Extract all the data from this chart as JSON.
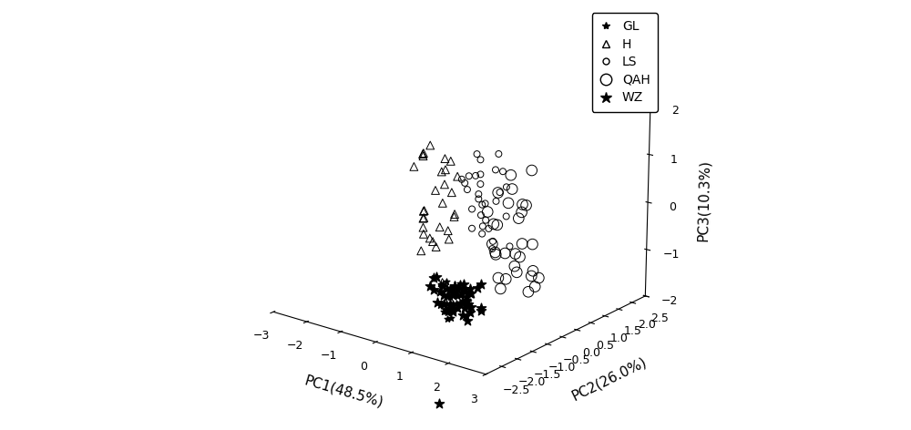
{
  "xlabel": "PC1(48.5%)",
  "ylabel": "PC2(26.0%)",
  "zlabel": "PC3(10.3%)",
  "xlim": [
    -3,
    3
  ],
  "ylim": [
    -3,
    2.5
  ],
  "zlim": [
    -2,
    2
  ],
  "xticks": [
    -3,
    -2,
    -1,
    0,
    1,
    2,
    3
  ],
  "yticks": [
    -2.5,
    -2,
    -1.5,
    -1,
    -0.5,
    0,
    0.5,
    1,
    1.5,
    2,
    2.5
  ],
  "zticks": [
    -2,
    -1,
    0,
    1,
    2
  ],
  "GL": {
    "pc1": [
      -0.3,
      -0.1,
      0.1,
      0.0,
      0.2,
      -0.2,
      0.1,
      -0.1,
      0.0,
      0.3,
      -0.3,
      0.2,
      0.0,
      -0.2,
      0.1,
      -0.1,
      0.3,
      -0.3,
      0.2,
      0.0,
      -0.2,
      0.1,
      -0.1,
      0.3,
      -0.3,
      0.0,
      0.2,
      -0.2,
      0.1,
      0.3,
      -0.1,
      0.0,
      -0.3,
      0.2,
      -0.2,
      0.1
    ],
    "pc2": [
      -0.5,
      -0.3,
      -0.4,
      -0.6,
      -0.5,
      -0.7,
      -0.4,
      -0.6,
      -0.3,
      -0.5,
      -0.4,
      -0.6,
      -0.7,
      -0.5,
      -0.3,
      -0.6,
      -0.4,
      -0.5,
      -0.7,
      -0.4,
      -0.6,
      -0.3,
      -0.5,
      -0.4,
      -0.6,
      -0.5,
      -0.3,
      -0.7,
      -0.4,
      -0.6,
      -0.5,
      -0.3,
      -0.4,
      -0.6,
      -0.5,
      -0.7
    ],
    "pc3": [
      -1.8,
      -2.0,
      -1.6,
      -2.2,
      -1.7,
      -1.9,
      -1.5,
      -2.1,
      -1.8,
      -1.6,
      -2.0,
      -1.7,
      -2.2,
      -1.5,
      -1.9,
      -1.6,
      -1.8,
      -2.0,
      -1.5,
      -1.7,
      -2.1,
      -1.9,
      -1.6,
      -1.8,
      -2.0,
      -1.7,
      -2.2,
      -1.5,
      -1.9,
      -1.6,
      -1.8,
      -2.0,
      -1.7,
      -1.5,
      -2.1,
      -1.9
    ]
  },
  "H": {
    "pc1": [
      -2.2,
      -2.0,
      -1.8,
      -1.6,
      -2.1,
      -1.9,
      -1.7,
      -2.0,
      -1.8,
      -2.2,
      -1.6,
      -2.0,
      -1.9,
      -1.7,
      -2.1,
      -1.8,
      -2.0,
      -1.6,
      -1.9,
      -2.2,
      -1.7,
      -2.0,
      -1.8,
      -2.1,
      -1.6,
      -1.9,
      -2.2,
      -1.7,
      -2.0,
      -1.8
    ],
    "pc2": [
      1.0,
      1.2,
      0.8,
      1.4,
      0.9,
      1.3,
      1.1,
      0.7,
      1.5,
      1.0,
      1.2,
      0.8,
      1.4,
      1.0,
      0.9,
      1.3,
      1.1,
      1.5,
      0.7,
      1.0,
      1.2,
      0.8,
      1.4,
      0.9,
      1.3,
      1.1,
      0.7,
      1.5,
      1.0,
      1.2
    ],
    "pc3": [
      0.5,
      -0.3,
      0.8,
      -0.8,
      -1.2,
      0.1,
      -0.5,
      -1.5,
      0.3,
      -0.9,
      -1.3,
      0.6,
      -0.2,
      -1.0,
      -0.7,
      0.4,
      -1.4,
      0.0,
      -0.6,
      -1.1,
      0.2,
      -0.8,
      -1.2,
      0.5,
      -0.3,
      -1.5,
      0.3,
      -0.9,
      -1.3,
      -2.3
    ]
  },
  "LS": {
    "pc1": [
      0.3,
      0.5,
      0.8,
      1.0,
      0.6,
      1.2,
      0.4,
      0.9,
      1.4,
      0.7,
      1.1,
      0.5,
      0.8,
      1.3,
      0.6,
      1.0,
      0.4,
      0.7,
      1.2,
      0.9,
      0.5,
      0.8,
      1.1,
      0.6,
      1.3,
      0.4,
      0.9,
      0.7,
      1.0,
      0.6
    ],
    "pc2": [
      -0.4,
      -0.2,
      -0.5,
      -0.3,
      -0.6,
      -0.4,
      -0.2,
      -0.5,
      -0.3,
      -0.6,
      -0.4,
      -0.2,
      -0.5,
      -0.3,
      -0.6,
      -0.4,
      -0.7,
      -0.5,
      -0.3,
      -0.6,
      -0.2,
      -0.4,
      -0.5,
      -0.7,
      -0.3,
      -0.6,
      -0.4,
      -0.5,
      -0.2,
      -0.3
    ],
    "pc3": [
      0.5,
      0.8,
      0.3,
      1.0,
      -0.2,
      0.6,
      1.2,
      0.0,
      -0.5,
      0.9,
      0.4,
      1.1,
      -0.3,
      0.7,
      0.2,
      -0.6,
      0.8,
      0.5,
      1.0,
      -0.1,
      0.6,
      0.3,
      -0.4,
      0.9,
      0.1,
      0.7,
      -0.2,
      0.4,
      1.3,
      0.0
    ]
  },
  "QAH": {
    "pc1": [
      1.0,
      1.3,
      1.6,
      2.0,
      2.3,
      1.5,
      1.8,
      2.1,
      1.2,
      1.7,
      2.0,
      1.4,
      1.9,
      2.2,
      1.6,
      1.1,
      1.8,
      2.0,
      1.3,
      1.7,
      2.1,
      1.5,
      1.9,
      1.0,
      1.4,
      1.8,
      2.2,
      1.6,
      2.0,
      1.2
    ],
    "pc2": [
      -0.4,
      -0.6,
      -0.3,
      -0.5,
      -0.7,
      -0.4,
      -0.6,
      -0.3,
      -0.8,
      -0.5,
      -0.4,
      -0.7,
      -0.5,
      -0.3,
      -0.6,
      -0.4,
      -0.5,
      -0.7,
      -0.3,
      -0.6,
      -0.4,
      -0.8,
      -0.5,
      -0.3,
      -0.6,
      -0.4,
      -0.5,
      -0.7,
      -0.3,
      -0.6
    ],
    "pc3": [
      -0.5,
      0.0,
      -1.0,
      0.5,
      1.3,
      1.0,
      -0.5,
      -1.2,
      0.3,
      -0.8,
      -1.3,
      0.7,
      -0.3,
      -1.0,
      0.5,
      -0.7,
      0.2,
      -0.5,
      -1.2,
      0.8,
      -0.3,
      -1.0,
      0.5,
      -0.7,
      -1.3,
      0.3,
      -0.8,
      -0.5,
      -1.0,
      0.0
    ]
  },
  "WZ": {
    "pc1": [
      -0.5,
      -0.3,
      -0.1,
      0.1,
      0.3,
      0.5,
      0.7,
      -0.4,
      -0.2,
      0.0,
      0.2,
      0.4,
      0.6,
      -0.5,
      -0.3,
      -0.1,
      0.1,
      0.3,
      0.5,
      -0.4,
      -0.2,
      0.0,
      0.2,
      0.4,
      0.6,
      -0.5,
      -0.3,
      0.1,
      0.3,
      0.5,
      0.7,
      -0.2,
      0.0,
      0.2,
      0.4,
      -0.1,
      0.3,
      0.5,
      0.1,
      -0.3,
      0.7
    ],
    "pc2": [
      -0.3,
      -0.5,
      -0.4,
      -0.6,
      -0.3,
      -0.5,
      -0.4,
      -0.6,
      -0.3,
      -0.5,
      -0.4,
      -0.6,
      -0.3,
      -0.7,
      -0.5,
      -0.4,
      -0.6,
      -0.3,
      -0.5,
      -0.7,
      -0.4,
      -0.6,
      -0.3,
      -0.5,
      -0.4,
      -0.6,
      -0.7,
      -0.5,
      -0.3,
      -0.6,
      -0.4,
      -0.5,
      -0.7,
      -0.3,
      -0.6,
      -0.4,
      -0.5,
      -0.7,
      -0.3,
      -0.6,
      -1.8
    ],
    "pc3": [
      -1.7,
      -2.0,
      -1.8,
      -1.5,
      -2.1,
      -1.6,
      -1.9,
      -1.4,
      -2.2,
      -1.7,
      -1.5,
      -1.9,
      -2.0,
      -1.6,
      -1.8,
      -2.1,
      -1.5,
      -1.7,
      -1.9,
      -1.4,
      -2.0,
      -1.6,
      -1.8,
      -2.2,
      -1.5,
      -1.7,
      -1.9,
      -2.0,
      -1.6,
      -1.8,
      -1.4,
      -2.1,
      -1.7,
      -1.9,
      -1.5,
      -2.0,
      -1.6,
      -1.8,
      -2.2,
      -1.7,
      -3.5
    ]
  },
  "background_color": "#ffffff",
  "legend_fontsize": 10,
  "axis_label_fontsize": 11,
  "tick_fontsize": 9
}
